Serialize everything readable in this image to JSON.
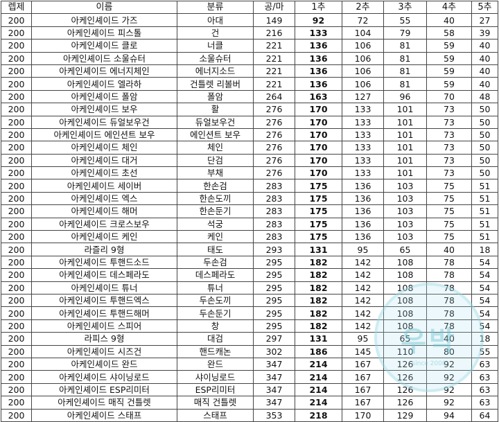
{
  "headers": [
    "렙제",
    "이름",
    "분류",
    "공/마",
    "1추",
    "2추",
    "3추",
    "4추",
    "5추"
  ],
  "rows": [
    [
      "200",
      "아케인셰이드 가즈",
      "아대",
      "149",
      "92",
      "72",
      "55",
      "40",
      "27"
    ],
    [
      "200",
      "아케인셰이드 피스톨",
      "건",
      "216",
      "133",
      "104",
      "79",
      "58",
      "39"
    ],
    [
      "200",
      "아케인셰이드 클로",
      "너클",
      "221",
      "136",
      "106",
      "81",
      "59",
      "40"
    ],
    [
      "200",
      "아케인셰이드 소울슈터",
      "소울슈터",
      "221",
      "136",
      "106",
      "81",
      "59",
      "40"
    ],
    [
      "200",
      "아케인셰이드 에너지체인",
      "에너지소드",
      "221",
      "136",
      "106",
      "81",
      "59",
      "40"
    ],
    [
      "200",
      "아케인셰이드 엘라하",
      "건틀렛 리볼버",
      "221",
      "136",
      "106",
      "81",
      "59",
      "40"
    ],
    [
      "200",
      "아케인셰이드 폴암",
      "폴암",
      "264",
      "163",
      "127",
      "96",
      "70",
      "48"
    ],
    [
      "200",
      "아케인셰이드 보우",
      "활",
      "276",
      "170",
      "133",
      "101",
      "73",
      "50"
    ],
    [
      "200",
      "아케인셰이드 듀얼보우건",
      "듀얼보우건",
      "276",
      "170",
      "133",
      "101",
      "73",
      "50"
    ],
    [
      "200",
      "아케인셰이드 에인션트 보우",
      "에인션트 보우",
      "276",
      "170",
      "133",
      "101",
      "73",
      "50"
    ],
    [
      "200",
      "아케인셰이드 체인",
      "체인",
      "276",
      "170",
      "133",
      "101",
      "73",
      "50"
    ],
    [
      "200",
      "아케인셰이드 대거",
      "단검",
      "276",
      "170",
      "133",
      "101",
      "73",
      "50"
    ],
    [
      "200",
      "아케인셰이드 초선",
      "부채",
      "276",
      "170",
      "133",
      "101",
      "73",
      "50"
    ],
    [
      "200",
      "아케인셰이드 세이버",
      "한손검",
      "283",
      "175",
      "136",
      "103",
      "75",
      "51"
    ],
    [
      "200",
      "아케인셰이드 엑스",
      "한손도끼",
      "283",
      "175",
      "136",
      "103",
      "75",
      "51"
    ],
    [
      "200",
      "아케인셰이드 해머",
      "한손둔기",
      "283",
      "175",
      "136",
      "103",
      "75",
      "51"
    ],
    [
      "200",
      "아케인셰이드 크로스보우",
      "석궁",
      "283",
      "175",
      "136",
      "103",
      "75",
      "51"
    ],
    [
      "200",
      "아케인셰이드 케인",
      "케인",
      "283",
      "175",
      "136",
      "103",
      "75",
      "51"
    ],
    [
      "200",
      "라즐리 9형",
      "태도",
      "293",
      "131",
      "95",
      "65",
      "40",
      "18"
    ],
    [
      "200",
      "아케인셰이드 투핸드소드",
      "두손검",
      "295",
      "182",
      "142",
      "108",
      "78",
      "54"
    ],
    [
      "200",
      "아케인셰이드 데스페라도",
      "데스페라도",
      "295",
      "182",
      "142",
      "108",
      "78",
      "54"
    ],
    [
      "200",
      "아케인셰이드 튜너",
      "튜너",
      "295",
      "182",
      "142",
      "108",
      "78",
      "54"
    ],
    [
      "200",
      "아케인셰이드 투핸드엑스",
      "두손도끼",
      "295",
      "182",
      "142",
      "108",
      "78",
      "54"
    ],
    [
      "200",
      "아케인셰이드 투핸드해머",
      "두손둔기",
      "295",
      "182",
      "142",
      "108",
      "78",
      "54"
    ],
    [
      "200",
      "아케인셰이드 스피어",
      "창",
      "295",
      "182",
      "142",
      "108",
      "78",
      "54"
    ],
    [
      "200",
      "라피스 9형",
      "대검",
      "297",
      "131",
      "95",
      "65",
      "40",
      "18"
    ],
    [
      "200",
      "아케인셰이드 시즈건",
      "핸드캐논",
      "302",
      "186",
      "145",
      "110",
      "80",
      "55"
    ],
    [
      "200",
      "아케인셰이드 완드",
      "완드",
      "347",
      "214",
      "167",
      "126",
      "92",
      "63"
    ],
    [
      "200",
      "아케인셰이드 샤이닝로드",
      "샤이닝로드",
      "347",
      "214",
      "167",
      "126",
      "92",
      "63"
    ],
    [
      "200",
      "아케인셰이드 ESP리미터",
      "ESP리미터",
      "347",
      "214",
      "167",
      "126",
      "92",
      "63"
    ],
    [
      "200",
      "아케인셰이드 매직 건틀렛",
      "매직 건틀렛",
      "347",
      "214",
      "167",
      "126",
      "92",
      "63"
    ],
    [
      "200",
      "아케인셰이드 스태프",
      "스태프",
      "353",
      "218",
      "170",
      "129",
      "94",
      "64"
    ]
  ],
  "watermark": {
    "text": "우박",
    "sub": "since 2008"
  }
}
